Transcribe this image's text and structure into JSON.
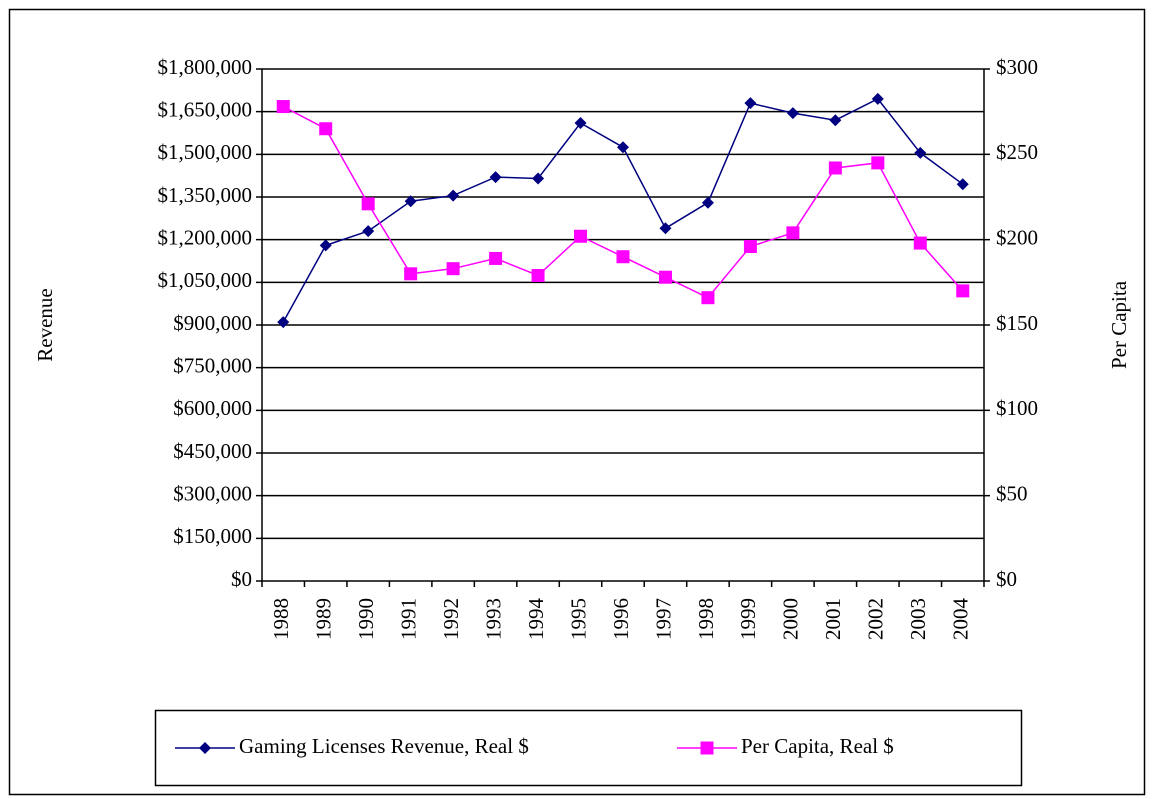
{
  "chart_data": {
    "type": "line",
    "categories": [
      "1988",
      "1989",
      "1990",
      "1991",
      "1992",
      "1993",
      "1994",
      "1995",
      "1996",
      "1997",
      "1998",
      "1999",
      "2000",
      "2001",
      "2002",
      "2003",
      "2004"
    ],
    "series": [
      {
        "name": "Gaming Licenses Revenue, Real $",
        "color": "#000080",
        "marker": "diamond",
        "values": [
          910000,
          1180000,
          1230000,
          1335000,
          1355000,
          1420000,
          1415000,
          1610000,
          1525000,
          1240000,
          1330000,
          1680000,
          1645000,
          1620000,
          1695000,
          1505000,
          1395000
        ]
      },
      {
        "name": "Per Capita, Real $",
        "color": "#ff00ff",
        "marker": "square",
        "axis": "y2",
        "values": [
          278,
          265,
          221,
          180,
          183,
          189,
          179,
          202,
          190,
          178,
          166,
          196,
          204,
          242,
          245,
          198,
          170
        ]
      }
    ],
    "ylabel": "Revenue",
    "y2label": "Per Capita",
    "ylim": [
      0,
      1800000
    ],
    "yticks": [
      {
        "value": 0,
        "label": "$0"
      },
      {
        "value": 150000,
        "label": "$150,000"
      },
      {
        "value": 300000,
        "label": "$300,000"
      },
      {
        "value": 450000,
        "label": "$450,000"
      },
      {
        "value": 600000,
        "label": "$600,000"
      },
      {
        "value": 750000,
        "label": "$750,000"
      },
      {
        "value": 900000,
        "label": "$900,000"
      },
      {
        "value": 1050000,
        "label": "$1,050,000"
      },
      {
        "value": 1200000,
        "label": "$1,200,000"
      },
      {
        "value": 1350000,
        "label": "$1,350,000"
      },
      {
        "value": 1500000,
        "label": "$1,500,000"
      },
      {
        "value": 1650000,
        "label": "$1,650,000"
      },
      {
        "value": 1800000,
        "label": "$1,800,000"
      }
    ],
    "y2lim": [
      0,
      300
    ],
    "y2ticks": [
      {
        "value": 0,
        "label": "$0"
      },
      {
        "value": 50,
        "label": "$50"
      },
      {
        "value": 100,
        "label": "$100"
      },
      {
        "value": 150,
        "label": "$150"
      },
      {
        "value": 200,
        "label": "$200"
      },
      {
        "value": 250,
        "label": "$250"
      },
      {
        "value": 300,
        "label": "$300"
      }
    ],
    "grid": true,
    "legend": "bottom"
  }
}
